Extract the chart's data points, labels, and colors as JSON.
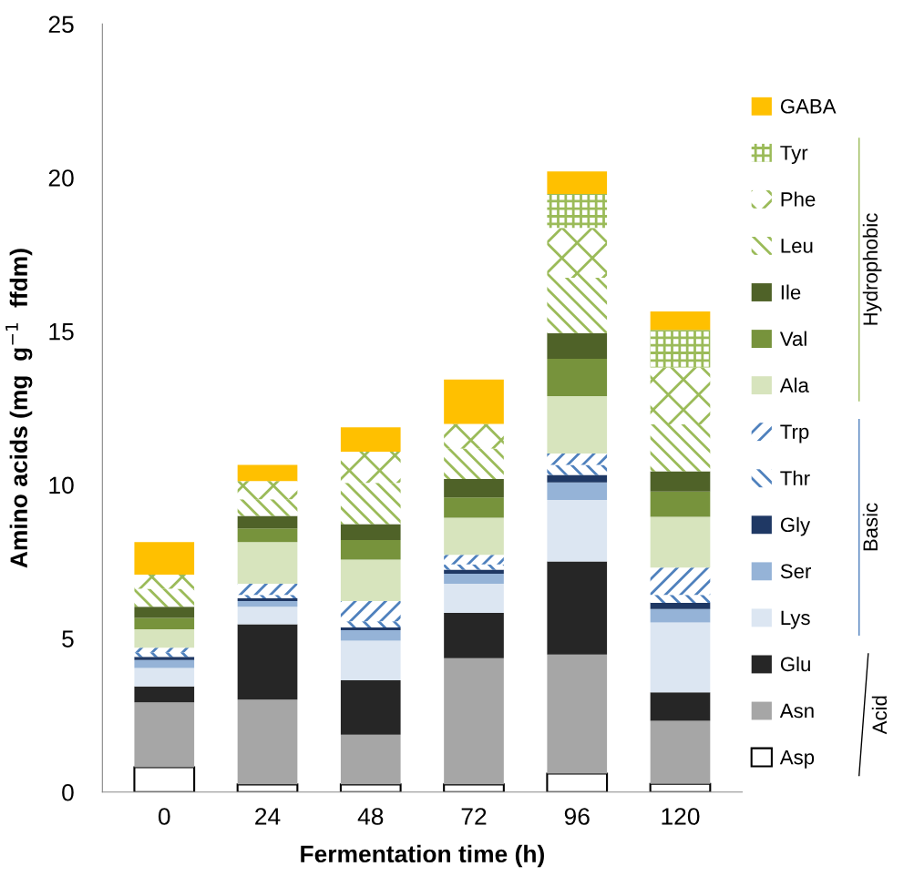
{
  "chart_data": {
    "type": "bar",
    "stacked": true,
    "xlabel": "Fermentation time (h)",
    "ylabel": "Amino acids (mg  g$^{−1}$  ffdm)",
    "categories": [
      "0",
      "24",
      "48",
      "72",
      "96",
      "120"
    ],
    "ylim": [
      0,
      25
    ],
    "yticks": [
      0,
      5,
      10,
      15,
      20,
      25
    ],
    "grid": false,
    "legend": "right",
    "annotations": [
      "Hydrophobic",
      "Basic",
      "Acid"
    ],
    "series": [
      {
        "name": "Asp",
        "color": "#ffffff",
        "values": [
          0.81,
          0.25,
          0.25,
          0.25,
          0.6,
          0.27
        ]
      },
      {
        "name": "Asn",
        "color": "#a6a6a6",
        "values": [
          2.11,
          2.76,
          1.62,
          4.11,
          3.88,
          2.05
        ]
      },
      {
        "name": "Glu",
        "color": "#262626",
        "values": [
          0.52,
          2.45,
          1.77,
          1.47,
          3.03,
          0.93
        ]
      },
      {
        "name": "Lys",
        "color": "#dce6f2",
        "values": [
          0.6,
          0.57,
          1.29,
          0.95,
          2.0,
          2.27
        ]
      },
      {
        "name": "Ser",
        "color": "#95b3d7",
        "values": [
          0.26,
          0.19,
          0.34,
          0.33,
          0.57,
          0.44
        ]
      },
      {
        "name": "Gly",
        "color": "#1f3864",
        "values": [
          0.1,
          0.09,
          0.09,
          0.13,
          0.24,
          0.2
        ]
      },
      {
        "name": "Thr",
        "color": "#4f81bd",
        "values": [
          0.14,
          0.11,
          0.2,
          0.17,
          0.33,
          0.26
        ]
      },
      {
        "name": "Trp",
        "color": "#4f81bd",
        "values": [
          0.16,
          0.36,
          0.66,
          0.31,
          0.37,
          0.89
        ]
      },
      {
        "name": "Ala",
        "color": "#d7e4bd",
        "values": [
          0.6,
          1.36,
          1.35,
          1.21,
          1.87,
          1.65
        ]
      },
      {
        "name": "Val",
        "color": "#77933c",
        "values": [
          0.37,
          0.44,
          0.63,
          0.66,
          1.21,
          0.82
        ]
      },
      {
        "name": "Ile",
        "color": "#4f6228",
        "values": [
          0.36,
          0.41,
          0.52,
          0.6,
          0.84,
          0.66
        ]
      },
      {
        "name": "Leu",
        "color": "#9bbb59",
        "values": [
          0.59,
          0.54,
          1.34,
          0.99,
          1.8,
          1.53
        ]
      },
      {
        "name": "Phe",
        "color": "#9bbb59",
        "values": [
          0.46,
          0.59,
          1.02,
          0.8,
          1.62,
          1.85
        ]
      },
      {
        "name": "Tyr",
        "color": "#9bbb59",
        "values": [
          0,
          0,
          0,
          0,
          1.11,
          1.22
        ]
      },
      {
        "name": "GABA",
        "color": "#ffc000",
        "values": [
          1.06,
          0.53,
          0.79,
          1.45,
          0.73,
          0.6
        ]
      }
    ]
  }
}
